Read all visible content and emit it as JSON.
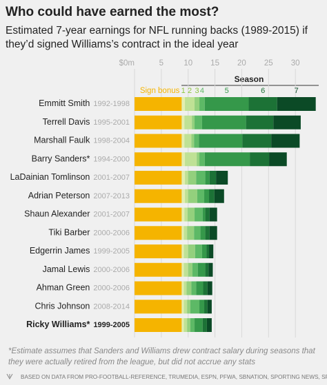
{
  "chart_data": {
    "type": "stacked-bar-horizontal",
    "title": "Who could have earned the most?",
    "subtitle": [
      "Estimated 7-year earnings for NFL running backs (1989-2015) if",
      "they’d signed Williams’s contract in the ideal year"
    ],
    "categories": [
      "Emmitt Smith",
      "Terrell Davis",
      "Marshall Faulk",
      "Barry Sanders*",
      "LaDainian Tomlinson",
      "Adrian Peterson",
      "Shaun Alexander",
      "Tiki Barber",
      "Edgerrin James",
      "Jamal Lewis",
      "Ahman Green",
      "Chris Johnson",
      "Ricky Williams*"
    ],
    "years": [
      "1992-1998",
      "1995-2001",
      "1998-2004",
      "1994-2000",
      "2001-2007",
      "2007-2013",
      "2001-2007",
      "2000-2006",
      "1999-2005",
      "2000-2006",
      "2000-2006",
      "2008-2014",
      "1999-2005"
    ],
    "highlight": "Ricky Williams*",
    "legend_title": "Season",
    "series": [
      {
        "name": "Sign bonus",
        "color": "#f5b400",
        "values": [
          8.8,
          8.8,
          8.8,
          8.8,
          8.8,
          8.8,
          8.8,
          8.8,
          8.8,
          8.8,
          8.8,
          8.8,
          8.8
        ]
      },
      {
        "name": "1",
        "color": "#e3eeb0",
        "values": [
          0.6,
          0.5,
          0.5,
          0.6,
          0.6,
          0.6,
          0.5,
          0.4,
          0.4,
          0.4,
          0.4,
          0.4,
          0.4
        ]
      },
      {
        "name": "2",
        "color": "#bfe195",
        "values": [
          1.8,
          1.4,
          1.3,
          2.2,
          0.6,
          0.6,
          0.6,
          0.6,
          0.8,
          0.8,
          0.5,
          0.6,
          0.6
        ]
      },
      {
        "name": "3",
        "color": "#93d07d",
        "values": [
          0.9,
          0.5,
          0.5,
          0.5,
          1.5,
          1.7,
          1.3,
          1.3,
          1.3,
          0.8,
          0.9,
          0.6,
          0.6
        ]
      },
      {
        "name": "4",
        "color": "#5db966",
        "values": [
          1.0,
          1.4,
          0.9,
          1.0,
          1.7,
          1.3,
          1.5,
          1.2,
          1.3,
          1.0,
          0.9,
          1.7,
          0.8
        ]
      },
      {
        "name": "5",
        "color": "#35984a",
        "values": [
          8.2,
          8.2,
          8.1,
          8.4,
          0.8,
          0.9,
          0.5,
          0.9,
          0.8,
          1.4,
          1.3,
          0.9,
          1.5
        ]
      },
      {
        "name": "6",
        "color": "#1c7236",
        "values": [
          5.3,
          5.1,
          5.4,
          3.6,
          1.2,
          1.0,
          0.8,
          0.8,
          0.5,
          0.6,
          0.8,
          0.6,
          0.8
        ]
      },
      {
        "name": "7",
        "color": "#0b4a26",
        "values": [
          7.2,
          5.1,
          5.3,
          3.3,
          2.2,
          1.8,
          1.4,
          1.4,
          0.8,
          0.8,
          0.9,
          0.8,
          0.9
        ]
      }
    ],
    "xlim": [
      0,
      35
    ],
    "xticks": [
      {
        "value": 0,
        "label": "$0m"
      },
      5,
      10,
      15,
      20,
      25,
      30
    ],
    "grid": true,
    "footnote": [
      "*Estimate assumes that Sanders and Williams drew contract salary during seasons that",
      "they were actually retired from the league, but did not accrue any stats"
    ],
    "source": "BASED ON DATA FROM PRO-FOOTBALL-REFERENCE, TRUMEDIA, ESPN, PFWA, SBNATION, SPORTING NEWS, SPORTRAC"
  }
}
